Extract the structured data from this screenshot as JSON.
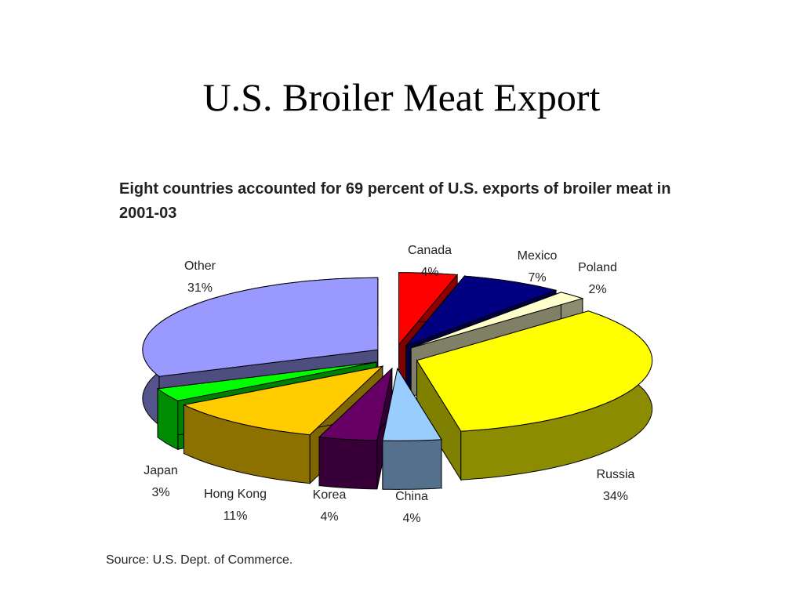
{
  "title": "U.S. Broiler Meat Export",
  "chart_data": {
    "type": "pie3d",
    "title": "Eight countries accounted for 69 percent of U.S. exports of broiler meat in 2001-03",
    "categories": [
      "Canada",
      "Mexico",
      "Poland",
      "Russia",
      "China",
      "Korea",
      "Hong Kong",
      "Japan",
      "Other"
    ],
    "values": [
      4,
      7,
      2,
      34,
      4,
      4,
      11,
      3,
      31
    ],
    "value_labels": [
      "4%",
      "7%",
      "2%",
      "34%",
      "4%",
      "4%",
      "11%",
      "3%",
      "31%"
    ],
    "colors": [
      "#ff0000",
      "#000080",
      "#ffffcc",
      "#ffff00",
      "#99ccff",
      "#660066",
      "#ffcc00",
      "#00ff00",
      "#9999ff"
    ],
    "source": "Source: U.S. Dept. of Commerce."
  }
}
